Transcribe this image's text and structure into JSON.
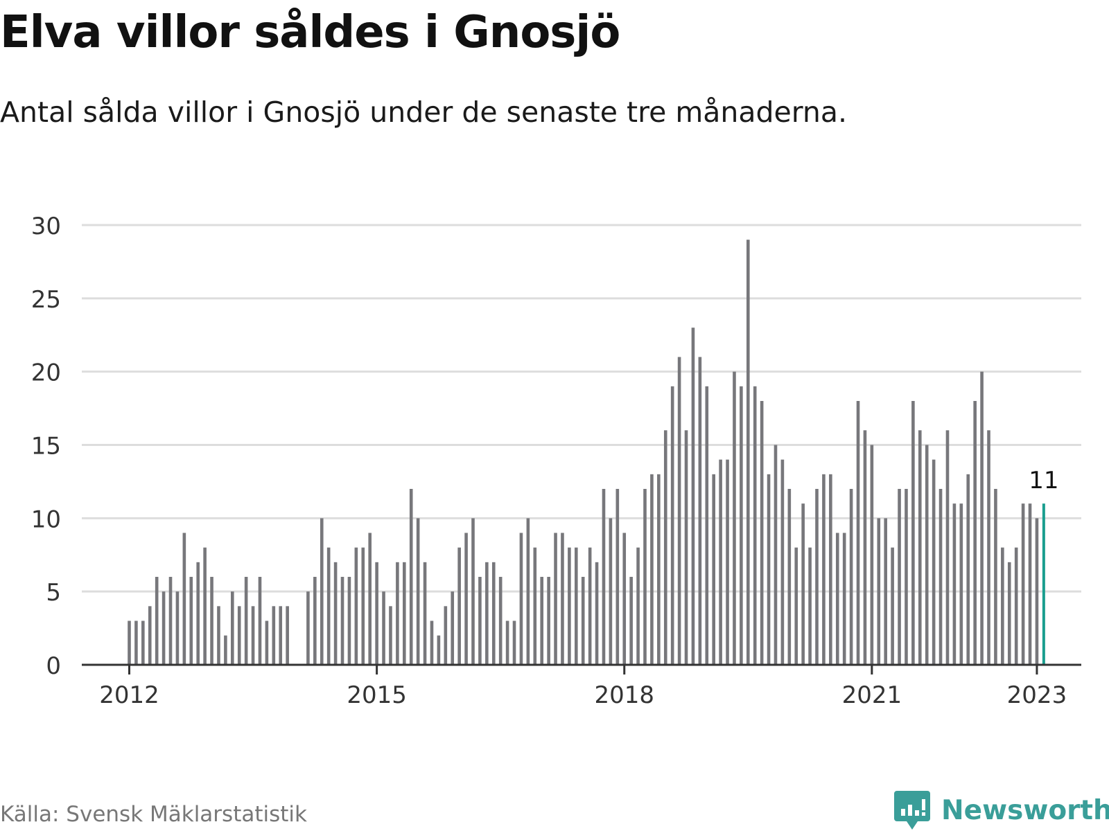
{
  "header": {
    "title": "Elva villor såldes i Gnosjö",
    "subtitle": "Antal sålda villor i Gnosjö under de senaste tre månaderna."
  },
  "footer": {
    "source": "Källa: Svensk Mäklarstatistik",
    "brand": "Newsworthy"
  },
  "colors": {
    "bar": "#77777b",
    "highlight": "#1a9e8f",
    "grid": "#dddddd",
    "axis": "#333333",
    "brand": "#3a9e99"
  },
  "chart_data": {
    "type": "bar",
    "x_start": "2012-01",
    "x_step": "month",
    "x_ticks": [
      "2012",
      "2015",
      "2018",
      "2021",
      "2023"
    ],
    "y_ticks": [
      "0",
      "5",
      "10",
      "15",
      "20",
      "25",
      "30"
    ],
    "ylim": [
      0,
      30
    ],
    "grid": true,
    "highlight_label": "11",
    "values": [
      3,
      3,
      3,
      4,
      6,
      5,
      6,
      5,
      9,
      6,
      7,
      8,
      6,
      4,
      2,
      5,
      4,
      6,
      4,
      6,
      3,
      4,
      4,
      4,
      null,
      null,
      5,
      6,
      10,
      8,
      7,
      6,
      6,
      8,
      8,
      9,
      7,
      5,
      4,
      7,
      7,
      12,
      10,
      7,
      3,
      2,
      4,
      5,
      8,
      9,
      10,
      6,
      7,
      7,
      6,
      3,
      3,
      9,
      10,
      8,
      6,
      6,
      9,
      9,
      8,
      8,
      6,
      8,
      7,
      12,
      10,
      12,
      9,
      6,
      8,
      12,
      13,
      13,
      16,
      19,
      21,
      16,
      23,
      21,
      19,
      13,
      14,
      14,
      20,
      19,
      29,
      19,
      18,
      13,
      15,
      14,
      12,
      8,
      11,
      8,
      12,
      13,
      13,
      9,
      9,
      12,
      18,
      16,
      15,
      10,
      10,
      8,
      12,
      12,
      18,
      16,
      15,
      14,
      12,
      16,
      11,
      11,
      13,
      18,
      20,
      16,
      12,
      8,
      7,
      8,
      11,
      11,
      10,
      11
    ]
  }
}
